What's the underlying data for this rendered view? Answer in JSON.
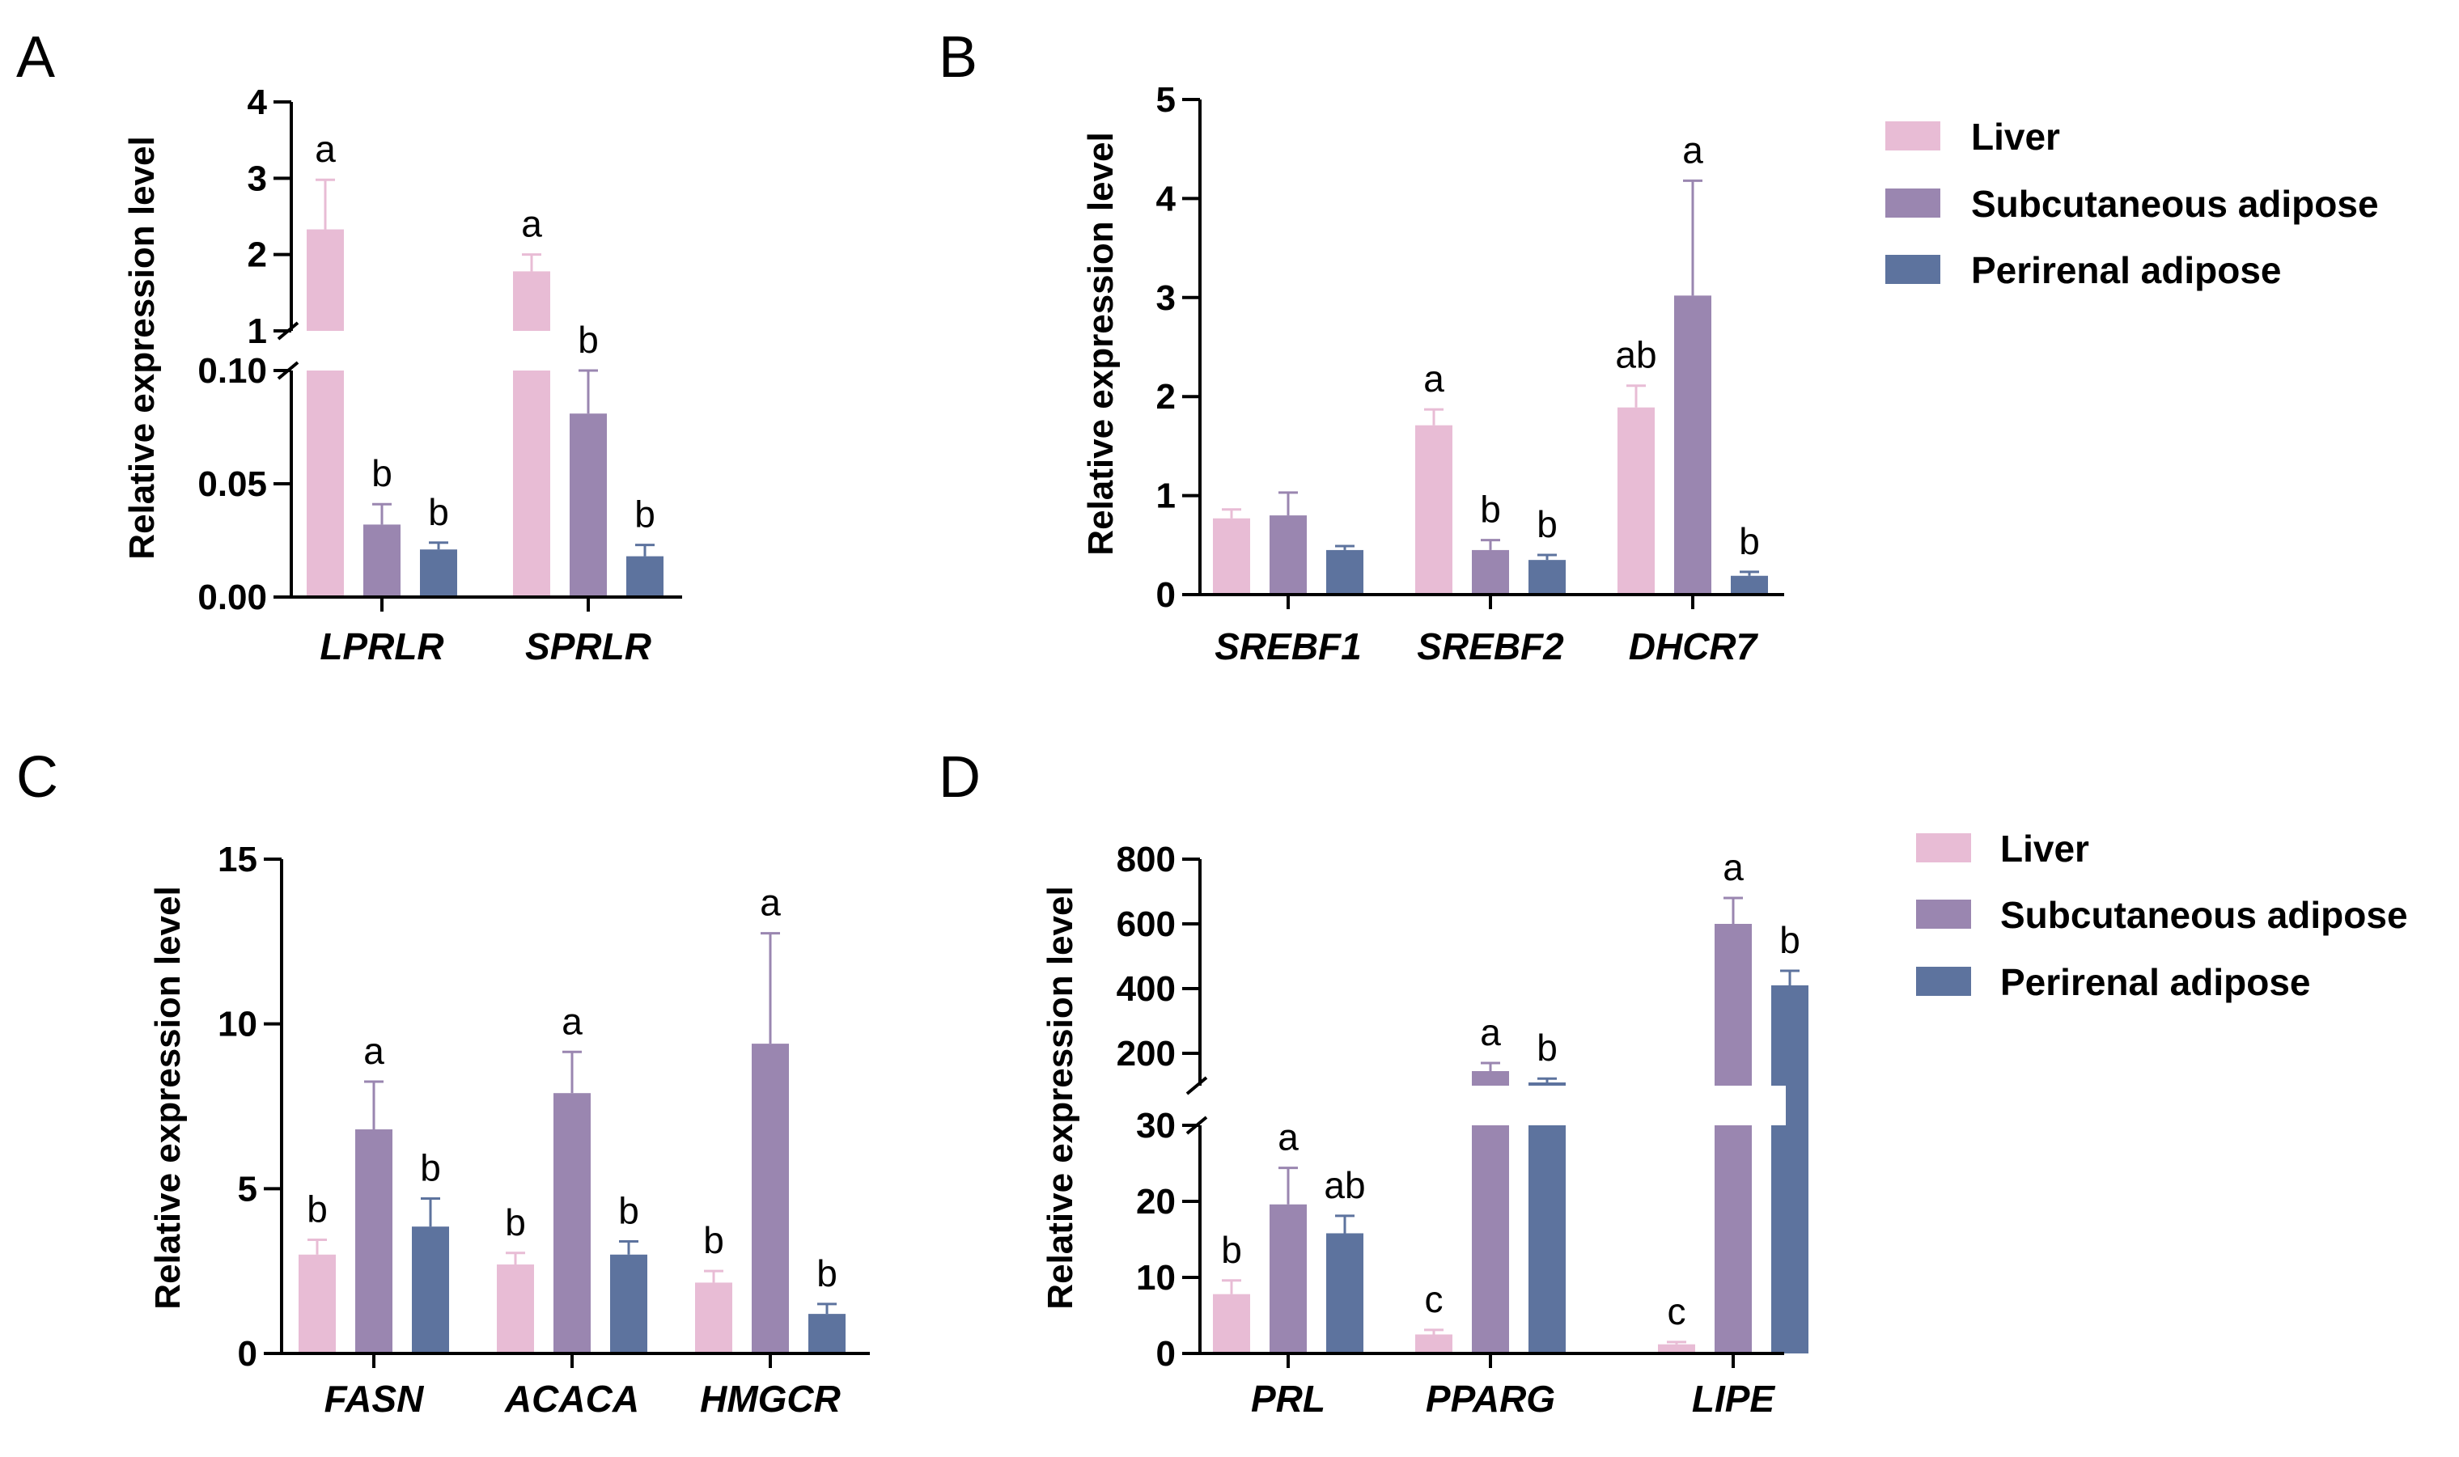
{
  "colors": {
    "Liver": "#e8bcd5",
    "Subcutaneous adipose": "#9a86b0",
    "Perirenal adipose": "#5d739e",
    "axis": "#000000"
  },
  "legend_entries": [
    "Liver",
    "Subcutaneous adipose",
    "Perirenal adipose"
  ],
  "chart_data": [
    {
      "panel": "A",
      "type": "bar",
      "ylabel": "Relative expression level",
      "axis_break": true,
      "lower_range": [
        0,
        0.1
      ],
      "lower_ticks": [
        "0.00",
        "0.05",
        "0.10"
      ],
      "upper_range": [
        1,
        4
      ],
      "upper_ticks": [
        "1",
        "2",
        "3",
        "4"
      ],
      "categories": [
        "LPRLR",
        "SPRLR"
      ],
      "series": [
        {
          "name": "Liver",
          "values": [
            2.33,
            1.78
          ],
          "errors": [
            0.65,
            0.22
          ],
          "labels": [
            "a",
            "a"
          ]
        },
        {
          "name": "Subcutaneous adipose",
          "values": [
            0.032,
            0.081
          ],
          "errors": [
            0.009,
            0.019
          ],
          "labels": [
            "b",
            "b"
          ]
        },
        {
          "name": "Perirenal adipose",
          "values": [
            0.021,
            0.018
          ],
          "errors": [
            0.003,
            0.005
          ],
          "labels": [
            "b",
            "b"
          ]
        }
      ]
    },
    {
      "panel": "B",
      "type": "bar",
      "ylabel": "Relative expression level",
      "axis_break": false,
      "ylim": [
        0,
        5
      ],
      "ticks": [
        "0",
        "1",
        "2",
        "3",
        "4",
        "5"
      ],
      "categories": [
        "SREBF1",
        "SREBF2",
        "DHCR7"
      ],
      "series": [
        {
          "name": "Liver",
          "values": [
            0.77,
            1.71,
            1.89
          ],
          "errors": [
            0.09,
            0.16,
            0.22
          ],
          "labels": [
            "",
            "a",
            "ab"
          ]
        },
        {
          "name": "Subcutaneous adipose",
          "values": [
            0.8,
            0.45,
            3.02
          ],
          "errors": [
            0.23,
            0.1,
            1.16
          ],
          "labels": [
            "",
            "b",
            "a"
          ]
        },
        {
          "name": "Perirenal adipose",
          "values": [
            0.45,
            0.35,
            0.19
          ],
          "errors": [
            0.04,
            0.05,
            0.04
          ],
          "labels": [
            "",
            "b",
            "b"
          ]
        }
      ]
    },
    {
      "panel": "C",
      "type": "bar",
      "ylabel": "Relative expression level",
      "axis_break": false,
      "ylim": [
        0,
        15
      ],
      "ticks": [
        "0",
        "5",
        "10",
        "15"
      ],
      "categories": [
        "FASN",
        "ACACA",
        "HMGCR"
      ],
      "series": [
        {
          "name": "Liver",
          "values": [
            3.0,
            2.7,
            2.15
          ],
          "errors": [
            0.45,
            0.35,
            0.35
          ],
          "labels": [
            "b",
            "b",
            "b"
          ]
        },
        {
          "name": "Subcutaneous adipose",
          "values": [
            6.8,
            7.9,
            9.4
          ],
          "errors": [
            1.45,
            1.25,
            3.35
          ],
          "labels": [
            "a",
            "a",
            "a"
          ]
        },
        {
          "name": "Perirenal adipose",
          "values": [
            3.85,
            3.0,
            1.2
          ],
          "errors": [
            0.85,
            0.4,
            0.3
          ],
          "labels": [
            "b",
            "b",
            "b"
          ]
        }
      ]
    },
    {
      "panel": "D",
      "type": "bar",
      "ylabel": "Relative expression level",
      "axis_break": true,
      "lower_range": [
        0,
        30
      ],
      "lower_ticks": [
        "0",
        "10",
        "20",
        "30"
      ],
      "upper_range": [
        100,
        800
      ],
      "upper_ticks": [
        "200",
        "400",
        "600",
        "800"
      ],
      "categories": [
        "PRL",
        "PPARG",
        "LIPE"
      ],
      "series": [
        {
          "name": "Liver",
          "values": [
            7.8,
            2.5,
            1.2
          ],
          "errors": [
            1.8,
            0.6,
            0.3
          ],
          "labels": [
            "b",
            "c",
            "c"
          ]
        },
        {
          "name": "Subcutaneous adipose",
          "values": [
            19.6,
            145,
            600
          ],
          "errors": [
            4.8,
            25,
            80
          ],
          "labels": [
            "a",
            "a",
            "a"
          ]
        },
        {
          "name": "Perirenal adipose",
          "values": [
            15.8,
            110,
            410
          ],
          "errors": [
            2.3,
            12,
            45
          ],
          "labels": [
            "ab",
            "b",
            "b"
          ]
        }
      ]
    }
  ]
}
